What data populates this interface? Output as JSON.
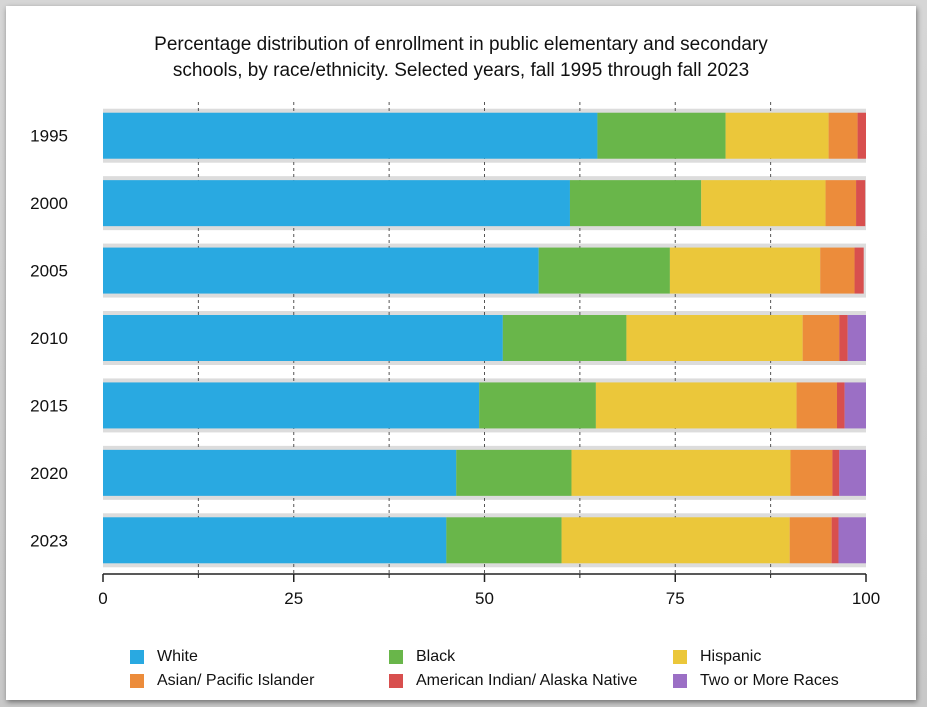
{
  "chart_data": {
    "type": "bar",
    "orientation": "horizontal",
    "stacked": true,
    "title": "Percentage distribution of enrollment in public elementary and secondary schools, by race/ethnicity. Selected years, fall 1995 through fall 2023",
    "title_lines": [
      "Percentage distribution of enrollment in public elementary and secondary",
      "schools, by race/ethnicity. Selected years, fall 1995 through fall 2023"
    ],
    "categories": [
      "1995",
      "2000",
      "2005",
      "2010",
      "2015",
      "2020",
      "2023"
    ],
    "xlim": [
      0,
      100
    ],
    "xticks": [
      "0",
      "25",
      "50",
      "75",
      "100"
    ],
    "grid": true,
    "legend_position": "bottom",
    "series": [
      {
        "name": "White",
        "color": "#29a9e1",
        "values": [
          64.8,
          61.2,
          57.1,
          52.4,
          49.3,
          46.3,
          45.0
        ]
      },
      {
        "name": "Black",
        "color": "#69b64a",
        "values": [
          16.8,
          17.2,
          17.2,
          16.2,
          15.3,
          15.1,
          15.1
        ]
      },
      {
        "name": "Hispanic",
        "color": "#ebc73a",
        "values": [
          13.5,
          16.3,
          19.7,
          23.1,
          26.3,
          28.7,
          29.9
        ]
      },
      {
        "name": "Asian/ Pacific Islander",
        "color": "#ec8c3b",
        "values": [
          3.8,
          4.0,
          4.5,
          4.8,
          5.3,
          5.5,
          5.5
        ]
      },
      {
        "name": "American Indian/ Alaska Native",
        "color": "#d84f4e",
        "values": [
          1.1,
          1.2,
          1.2,
          1.1,
          1.0,
          0.9,
          0.9
        ]
      },
      {
        "name": "Two or More Races",
        "color": "#9b6fc5",
        "values": [
          0,
          0,
          0,
          2.4,
          2.8,
          3.5,
          3.6
        ]
      }
    ],
    "colors": {
      "row_track": "#dcdcdc",
      "grid_line": "#555555",
      "axis": "#222222"
    }
  }
}
